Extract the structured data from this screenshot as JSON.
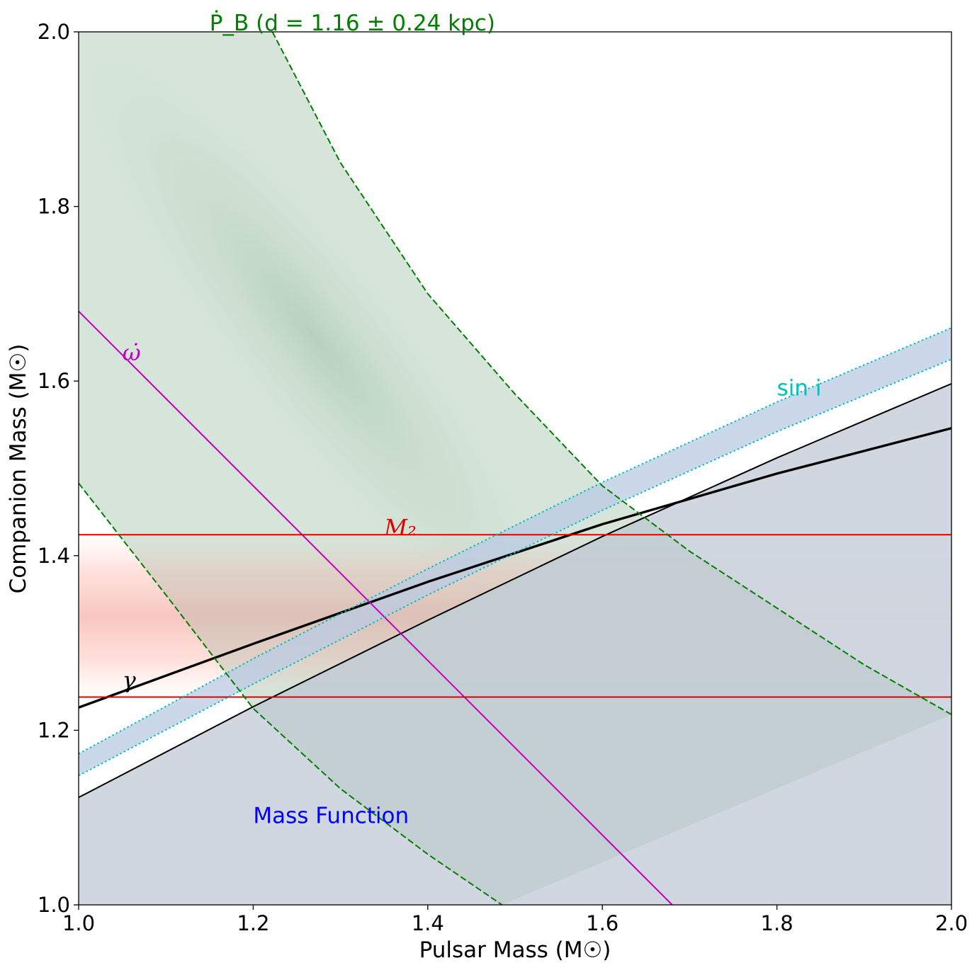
{
  "chart_data": {
    "type": "line",
    "xlabel": "Pulsar Mass (M☉)",
    "ylabel": "Companion Mass (M☉)",
    "xlim": [
      1.0,
      2.0
    ],
    "ylim": [
      1.0,
      2.0
    ],
    "xticks": [
      "1.0",
      "1.2",
      "1.4",
      "1.6",
      "1.8",
      "2.0"
    ],
    "yticks": [
      "1.0",
      "1.2",
      "1.4",
      "1.6",
      "1.8",
      "2.0"
    ],
    "grid": false,
    "colors": {
      "omega_dot": "#bf00bf",
      "m2": "#e00000",
      "pb_dot": "#007f00",
      "sin_i": "#00bfbf",
      "gamma": "#000000",
      "mass_function": "#0000ff",
      "mass_function_fill": "#ced5df"
    },
    "annotations": [
      {
        "id": "pbdot",
        "text": "Ṗ_B (d = 1.16 ± 0.24 kpc)",
        "x": 1.15,
        "y": 2.0,
        "color": "#007f00"
      },
      {
        "id": "omega",
        "text": "ω̇",
        "x": 1.05,
        "y": 1.63,
        "color": "#bf00bf"
      },
      {
        "id": "sini",
        "text": "sin i",
        "x": 1.8,
        "y": 1.59,
        "color": "#00bfbf"
      },
      {
        "id": "m2",
        "text": "M₂",
        "x": 1.35,
        "y": 1.43,
        "color": "#e00000"
      },
      {
        "id": "gamma",
        "text": "γ",
        "x": 1.05,
        "y": 1.255,
        "color": "#000000"
      },
      {
        "id": "massfn",
        "text": "Mass Function",
        "x": 1.2,
        "y": 1.1,
        "color": "#0000ff"
      }
    ],
    "series": [
      {
        "name": "Mass Function",
        "style": "solid",
        "x": [
          1.0,
          1.2,
          1.4,
          1.6,
          1.8,
          2.0
        ],
        "y": [
          1.123,
          1.227,
          1.326,
          1.422,
          1.512,
          1.597
        ]
      },
      {
        "name": "γ",
        "style": "solid-thick",
        "x": [
          1.0,
          1.2,
          1.4,
          1.6,
          1.8,
          2.0
        ],
        "y": [
          1.226,
          1.299,
          1.37,
          1.436,
          1.494,
          1.546
        ]
      },
      {
        "name": "ω̇",
        "style": "solid",
        "x": [
          1.0,
          1.25,
          1.5,
          1.68
        ],
        "y": [
          1.68,
          1.43,
          1.18,
          1.0
        ]
      },
      {
        "name": "M₂ upper",
        "style": "solid",
        "x": [
          1.0,
          2.0
        ],
        "y": [
          1.424,
          1.424
        ]
      },
      {
        "name": "M₂ lower",
        "style": "solid",
        "x": [
          1.0,
          2.0
        ],
        "y": [
          1.238,
          1.238
        ]
      },
      {
        "name": "sin i upper",
        "style": "dotted",
        "x": [
          1.0,
          1.2,
          1.4,
          1.6,
          1.8,
          2.0
        ],
        "y": [
          1.173,
          1.282,
          1.385,
          1.484,
          1.576,
          1.661
        ]
      },
      {
        "name": "sin i lower",
        "style": "dotted",
        "x": [
          1.0,
          1.2,
          1.4,
          1.6,
          1.8,
          2.0
        ],
        "y": [
          1.148,
          1.253,
          1.355,
          1.452,
          1.542,
          1.625
        ]
      },
      {
        "name": "Ṗ_B upper",
        "style": "dashed",
        "x": [
          1.222,
          1.3,
          1.4,
          1.5,
          1.6,
          1.7,
          1.8,
          1.9,
          2.0
        ],
        "y": [
          2.0,
          1.85,
          1.7,
          1.585,
          1.48,
          1.405,
          1.34,
          1.275,
          1.218
        ]
      },
      {
        "name": "Ṗ_B lower",
        "style": "dashed",
        "x": [
          1.0,
          1.1,
          1.2,
          1.3,
          1.4,
          1.485
        ],
        "y": [
          1.483,
          1.355,
          1.225,
          1.133,
          1.058,
          1.0
        ]
      }
    ]
  }
}
